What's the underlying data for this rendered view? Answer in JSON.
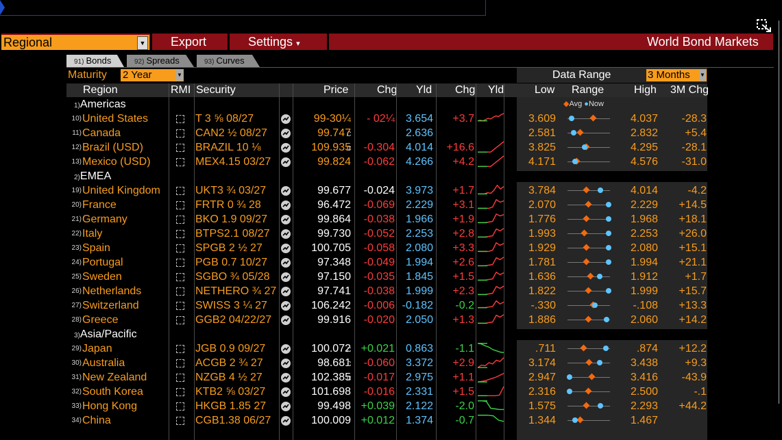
{
  "toolbar": {
    "region": "Regional",
    "export": "Export",
    "settings": "Settings",
    "settings_caret": "▾",
    "title": "World Bond Markets"
  },
  "tabs": [
    {
      "num": "91)",
      "label": "Bonds",
      "active": true
    },
    {
      "num": "92)",
      "label": "Spreads",
      "active": false
    },
    {
      "num": "93)",
      "label": "Curves",
      "active": false
    }
  ],
  "maturity": {
    "label": "Maturity",
    "value": "2 Year"
  },
  "data_range": {
    "label": "Data Range",
    "value": "3 Months"
  },
  "columns": {
    "region": "Region",
    "rmi": "RMI",
    "security": "Security",
    "price": "Price",
    "chg": "Chg",
    "yld": "Yld",
    "ychg": "Chg",
    "yld_chart": "Yld",
    "low": "Low",
    "range": "Range",
    "high": "High",
    "chg3m": "3M Chg"
  },
  "legend": {
    "avg": "Avg",
    "now": "Now"
  },
  "sections": [
    {
      "num": "1)",
      "label": "Americas"
    },
    {
      "num": "2)",
      "label": "EMEA"
    },
    {
      "num": "3)",
      "label": "Asia/Pacific"
    }
  ],
  "rows": [
    {
      "num": "10)",
      "region": "United States",
      "security": "T 3 ⅝ 08/27",
      "price": "99-30¼",
      "price_color": "orange",
      "price_suffix": "",
      "chg": "- 02¼",
      "chg_color": "red",
      "yld": "3.654",
      "ychg": "+3.7",
      "ychg_color": "red",
      "low": "3.609",
      "high": "4.037",
      "chg3m": "-28.3",
      "avg": 0.62,
      "now": 0.1,
      "spark": [
        0.3,
        0.35,
        0.3,
        0.4,
        0.5,
        0.45,
        0.6,
        0.7,
        0.65,
        0.8,
        0.9
      ]
    },
    {
      "num": "11)",
      "region": "Canada",
      "security": "CAN2 ½ 08/27",
      "price": "99.747",
      "price_color": "orange",
      "price_suffix": "c",
      "chg": "",
      "chg_color": "red",
      "yld": "2.636",
      "ychg": "",
      "ychg_color": "red",
      "low": "2.581",
      "high": "2.832",
      "chg3m": "+5.4",
      "avg": 0.3,
      "now": 0.15,
      "spark": []
    },
    {
      "num": "12)",
      "region": "Brazil (USD)",
      "security": "BRAZIL 10 ⅛",
      "price": "109.935",
      "price_color": "orange",
      "price_suffix": "c",
      "chg": "-0.304",
      "chg_color": "red",
      "yld": "4.014",
      "ychg": "+16.6",
      "ychg_color": "red",
      "low": "3.825",
      "high": "4.295",
      "chg3m": "-28.1",
      "avg": 0.45,
      "now": 0.4,
      "spark": [
        0.1,
        0.1,
        0.95
      ]
    },
    {
      "num": "13)",
      "region": "Mexico (USD)",
      "security": "MEX4.15 03/27",
      "price": "99.824",
      "price_color": "orange",
      "price_suffix": "",
      "chg": "-0.062",
      "chg_color": "red",
      "yld": "4.266",
      "ychg": "+4.2",
      "ychg_color": "red",
      "low": "4.171",
      "high": "4.576",
      "chg3m": "-31.0",
      "avg": 0.22,
      "now": 0.18,
      "spark": [
        0.1,
        0.1,
        0.95
      ]
    },
    {
      "num": "19)",
      "region": "United Kingdom",
      "security": "UKT3 ¾ 03/27",
      "price": "99.677",
      "price_color": "white",
      "price_suffix": "",
      "chg": "-0.024",
      "chg_color": "white",
      "yld": "3.973",
      "ychg": "+1.7",
      "ychg_color": "red",
      "low": "3.784",
      "high": "4.014",
      "chg3m": "-4.2",
      "avg": 0.45,
      "now": 0.78,
      "spark": [
        0.2,
        0.2,
        0.2,
        0.3,
        0.25,
        0.5,
        0.9,
        0.6,
        0.8
      ]
    },
    {
      "num": "20)",
      "region": "France",
      "security": "FRTR 0 ¾ 28",
      "price": "96.472",
      "price_color": "white",
      "price_suffix": "",
      "chg": "-0.069",
      "chg_color": "red",
      "yld": "2.229",
      "ychg": "+3.1",
      "ychg_color": "red",
      "low": "2.070",
      "high": "2.229",
      "chg3m": "+14.5",
      "avg": 0.5,
      "now": 0.97,
      "spark": [
        0.2,
        0.2,
        0.2,
        0.2,
        0.3,
        0.9,
        0.7,
        0.8
      ]
    },
    {
      "num": "21)",
      "region": "Germany",
      "security": "BKO 1.9 09/27",
      "price": "99.864",
      "price_color": "white",
      "price_suffix": "",
      "chg": "-0.038",
      "chg_color": "red",
      "yld": "1.966",
      "ychg": "+1.9",
      "ychg_color": "red",
      "low": "1.776",
      "high": "1.968",
      "chg3m": "+18.1",
      "avg": 0.45,
      "now": 0.97,
      "spark": [
        0.2,
        0.2,
        0.2,
        0.25,
        0.3,
        0.9,
        0.75,
        0.85
      ]
    },
    {
      "num": "22)",
      "region": "Italy",
      "security": "BTPS2.1 08/27",
      "price": "99.730",
      "price_color": "white",
      "price_suffix": "",
      "chg": "-0.052",
      "chg_color": "red",
      "yld": "2.253",
      "ychg": "+2.8",
      "ychg_color": "red",
      "low": "1.993",
      "high": "2.253",
      "chg3m": "+26.0",
      "avg": 0.4,
      "now": 0.97,
      "spark": [
        0.2,
        0.2,
        0.2,
        0.25,
        0.3,
        0.85,
        0.7,
        0.9
      ]
    },
    {
      "num": "23)",
      "region": "Spain",
      "security": "SPGB 2 ½ 27",
      "price": "100.705",
      "price_color": "white",
      "price_suffix": "",
      "chg": "-0.058",
      "chg_color": "red",
      "yld": "2.080",
      "ychg": "+3.3",
      "ychg_color": "red",
      "low": "1.929",
      "high": "2.080",
      "chg3m": "+15.1",
      "avg": 0.45,
      "now": 0.97,
      "spark": [
        0.2,
        0.2,
        0.2,
        0.2,
        0.3,
        0.9,
        0.7,
        0.85
      ]
    },
    {
      "num": "24)",
      "region": "Portugal",
      "security": "PGB 0.7 10/27",
      "price": "97.348",
      "price_color": "white",
      "price_suffix": "",
      "chg": "-0.049",
      "chg_color": "red",
      "yld": "1.994",
      "ychg": "+2.6",
      "ychg_color": "red",
      "low": "1.781",
      "high": "1.994",
      "chg3m": "+21.1",
      "avg": 0.45,
      "now": 0.97,
      "spark": [
        0.2,
        0.2,
        0.2,
        0.25,
        0.3,
        0.85,
        0.7,
        0.9
      ]
    },
    {
      "num": "25)",
      "region": "Sweden",
      "security": "SGBO ¾ 05/28",
      "price": "97.150",
      "price_color": "white",
      "price_suffix": "",
      "chg": "-0.035",
      "chg_color": "red",
      "yld": "1.845",
      "ychg": "+1.5",
      "ychg_color": "red",
      "low": "1.636",
      "high": "1.912",
      "chg3m": "+1.7",
      "avg": 0.55,
      "now": 0.76,
      "spark": [
        0.2,
        0.2,
        0.2,
        0.25,
        0.3,
        0.85,
        0.65,
        0.8
      ]
    },
    {
      "num": "26)",
      "region": "Netherlands",
      "security": "NETHERO ¾ 27",
      "price": "97.741",
      "price_color": "white",
      "price_suffix": "",
      "chg": "-0.038",
      "chg_color": "red",
      "yld": "1.999",
      "ychg": "+2.3",
      "ychg_color": "red",
      "low": "1.822",
      "high": "1.999",
      "chg3m": "+15.7",
      "avg": 0.5,
      "now": 0.97,
      "spark": [
        0.2,
        0.2,
        0.2,
        0.25,
        0.3,
        0.85,
        0.7,
        0.88
      ]
    },
    {
      "num": "27)",
      "region": "Switzerland",
      "security": "SWISS 3 ¼ 27",
      "price": "106.242",
      "price_color": "white",
      "price_suffix": "",
      "chg": "-0.006",
      "chg_color": "red",
      "yld": "-0.182",
      "ychg": "-0.2",
      "ychg_color": "green",
      "low": "-.330",
      "high": "-.108",
      "chg3m": "+13.3",
      "avg": 0.62,
      "now": 0.65,
      "spark": [
        0.3,
        0.3,
        0.3,
        0.35,
        0.4,
        0.85,
        0.6,
        0.75
      ]
    },
    {
      "num": "28)",
      "region": "Greece",
      "security": "GGB2 04/22/27",
      "price": "99.916",
      "price_color": "white",
      "price_suffix": "",
      "chg": "-0.020",
      "chg_color": "red",
      "yld": "2.050",
      "ychg": "+1.3",
      "ychg_color": "red",
      "low": "1.886",
      "high": "2.060",
      "chg3m": "+14.2",
      "avg": 0.5,
      "now": 0.92,
      "spark": [
        0.2,
        0.2,
        0.2,
        0.25,
        0.3,
        0.85,
        0.7,
        0.9
      ]
    },
    {
      "num": "29)",
      "region": "Japan",
      "security": "JGB 0.9 09/27",
      "price": "100.072",
      "price_color": "white",
      "price_suffix": "c",
      "chg": "+0.021",
      "chg_color": "green",
      "yld": "0.863",
      "ychg": "-1.1",
      "ychg_color": "green",
      "low": ".711",
      "high": ".874",
      "chg3m": "+12.2",
      "avg": 0.38,
      "now": 0.9,
      "spark": [
        0.9,
        0.85,
        0.7,
        0.6,
        0.4,
        0.3,
        0.2,
        0.15
      ]
    },
    {
      "num": "30)",
      "region": "Australia",
      "security": "ACGB 2 ¾ 27",
      "price": "98.681",
      "price_color": "white",
      "price_suffix": "c",
      "chg": "-0.060",
      "chg_color": "red",
      "yld": "3.372",
      "ychg": "+2.9",
      "ychg_color": "red",
      "low": "3.174",
      "high": "3.438",
      "chg3m": "+9.3",
      "avg": 0.52,
      "now": 0.76,
      "spark": [
        0.1,
        0.3,
        0.25,
        0.5,
        0.4,
        0.7,
        0.6,
        0.9
      ]
    },
    {
      "num": "31)",
      "region": "New Zealand",
      "security": "NZGB 4 ½ 27",
      "price": "102.385",
      "price_color": "white",
      "price_suffix": "c",
      "chg": "-0.017",
      "chg_color": "red",
      "yld": "2.975",
      "ychg": "+1.1",
      "ychg_color": "red",
      "low": "2.947",
      "high": "3.416",
      "chg3m": "-43.9",
      "avg": 0.58,
      "now": 0.05,
      "spark": [
        0.1,
        0.15,
        0.2,
        0.3,
        0.4,
        0.5,
        0.65,
        0.8
      ]
    },
    {
      "num": "32)",
      "region": "South Korea",
      "security": "KTB2 ⅝ 03/27",
      "price": "101.698",
      "price_color": "white",
      "price_suffix": "",
      "chg": "-0.016",
      "chg_color": "red",
      "yld": "2.331",
      "ychg": "+1.5",
      "ychg_color": "red",
      "low": "2.316",
      "high": "2.500",
      "chg3m": "-.1",
      "avg": 0.5,
      "now": 0.05,
      "spark": [
        0.15,
        0.15,
        0.15,
        0.15,
        0.15,
        0.2,
        0.9
      ]
    },
    {
      "num": "33)",
      "region": "Hong Kong",
      "security": "HKGB 1.85 27",
      "price": "99.498",
      "price_color": "white",
      "price_suffix": "",
      "chg": "+0.039",
      "chg_color": "green",
      "yld": "2.122",
      "ychg": "-2.0",
      "ychg_color": "green",
      "low": "1.575",
      "high": "2.293",
      "chg3m": "+44.2",
      "avg": 0.45,
      "now": 0.78,
      "spark": [
        0.9,
        0.9,
        0.85,
        0.3,
        0.25,
        0.2,
        0.2
      ]
    },
    {
      "num": "34)",
      "region": "China",
      "security": "CGB1.38 06/27",
      "price": "100.009",
      "price_color": "white",
      "price_suffix": "",
      "chg": "+0.012",
      "chg_color": "green",
      "yld": "1.374",
      "ychg": "-0.7",
      "ychg_color": "green",
      "low": "1.344",
      "high": "1.467",
      "chg3m": "",
      "avg": 0.3,
      "now": 0.18,
      "spark": [
        0.9,
        0.9,
        0.9,
        0.85,
        0.5,
        0.4
      ]
    }
  ],
  "colors": {
    "orange": "#f89c1c",
    "toolbar_red": "#8a0f17",
    "avg_dot": "#f26a10",
    "now_dot": "#5ec4ff"
  }
}
